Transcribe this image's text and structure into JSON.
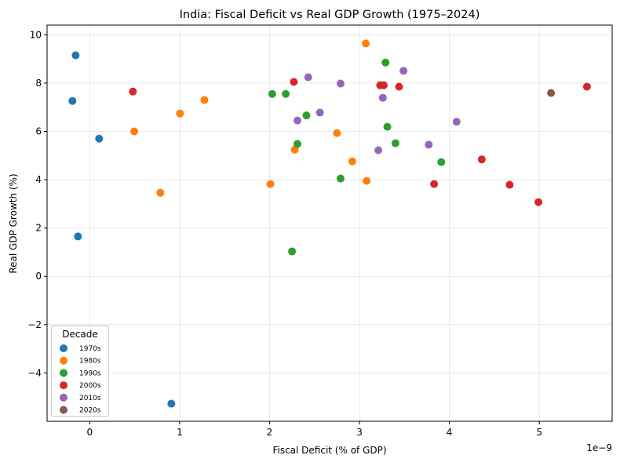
{
  "chart_data": {
    "type": "scatter",
    "title": "India: Fiscal Deficit vs Real GDP Growth (1975–2024)",
    "xlabel": "Fiscal Deficit (% of GDP)",
    "ylabel": "Real GDP Growth (%)",
    "x_offset_label": "1e−9",
    "xlim": [
      -0.474,
      5.81
    ],
    "ylim": [
      -6.0,
      10.4
    ],
    "xticks": [
      0,
      1,
      2,
      3,
      4,
      5
    ],
    "xtick_labels": [
      "0",
      "1",
      "2",
      "3",
      "4",
      "5"
    ],
    "yticks": [
      -4,
      -2,
      0,
      2,
      4,
      6,
      8,
      10
    ],
    "ytick_labels": [
      "−4",
      "−2",
      "0",
      "2",
      "4",
      "6",
      "8",
      "10"
    ],
    "grid": true,
    "legend": {
      "title": "Decade",
      "placement": "lower-left"
    },
    "series": [
      {
        "name": "1970s",
        "color": "#1f77b4",
        "points": [
          [
            -0.157,
            9.15
          ],
          [
            -0.192,
            7.26
          ],
          [
            0.105,
            5.7
          ],
          [
            -0.131,
            1.65
          ],
          [
            0.908,
            -5.27
          ]
        ]
      },
      {
        "name": "1980s",
        "color": "#ff7f0e",
        "points": [
          [
            0.495,
            6.0
          ],
          [
            1.004,
            6.74
          ],
          [
            1.275,
            7.3
          ],
          [
            0.786,
            3.46
          ],
          [
            2.28,
            5.24
          ],
          [
            2.01,
            3.82
          ],
          [
            3.07,
            9.64
          ],
          [
            2.75,
            5.93
          ],
          [
            2.92,
            4.76
          ],
          [
            3.08,
            3.95
          ]
        ]
      },
      {
        "name": "1990s",
        "color": "#2ca02c",
        "points": [
          [
            2.03,
            7.55
          ],
          [
            2.18,
            7.55
          ],
          [
            2.41,
            6.66
          ],
          [
            2.31,
            5.48
          ],
          [
            2.25,
            1.03
          ],
          [
            3.29,
            8.85
          ],
          [
            3.31,
            6.19
          ],
          [
            3.4,
            5.51
          ],
          [
            3.91,
            4.73
          ],
          [
            2.79,
            4.05
          ]
        ]
      },
      {
        "name": "2000s",
        "color": "#d62728",
        "points": [
          [
            0.48,
            7.65
          ],
          [
            2.27,
            8.05
          ],
          [
            3.23,
            7.91
          ],
          [
            3.27,
            7.91
          ],
          [
            3.44,
            7.85
          ],
          [
            5.53,
            7.85
          ],
          [
            4.36,
            4.84
          ],
          [
            3.83,
            3.82
          ],
          [
            4.67,
            3.79
          ],
          [
            4.99,
            3.07
          ]
        ]
      },
      {
        "name": "2010s",
        "color": "#9467bd",
        "points": [
          [
            2.43,
            8.24
          ],
          [
            2.31,
            6.45
          ],
          [
            3.49,
            8.51
          ],
          [
            2.79,
            7.98
          ],
          [
            3.26,
            7.39
          ],
          [
            2.56,
            6.78
          ],
          [
            4.08,
            6.4
          ],
          [
            3.77,
            5.45
          ],
          [
            3.21,
            5.22
          ]
        ]
      },
      {
        "name": "2020s",
        "color": "#8c564b",
        "points": [
          [
            5.13,
            7.59
          ]
        ]
      }
    ]
  }
}
